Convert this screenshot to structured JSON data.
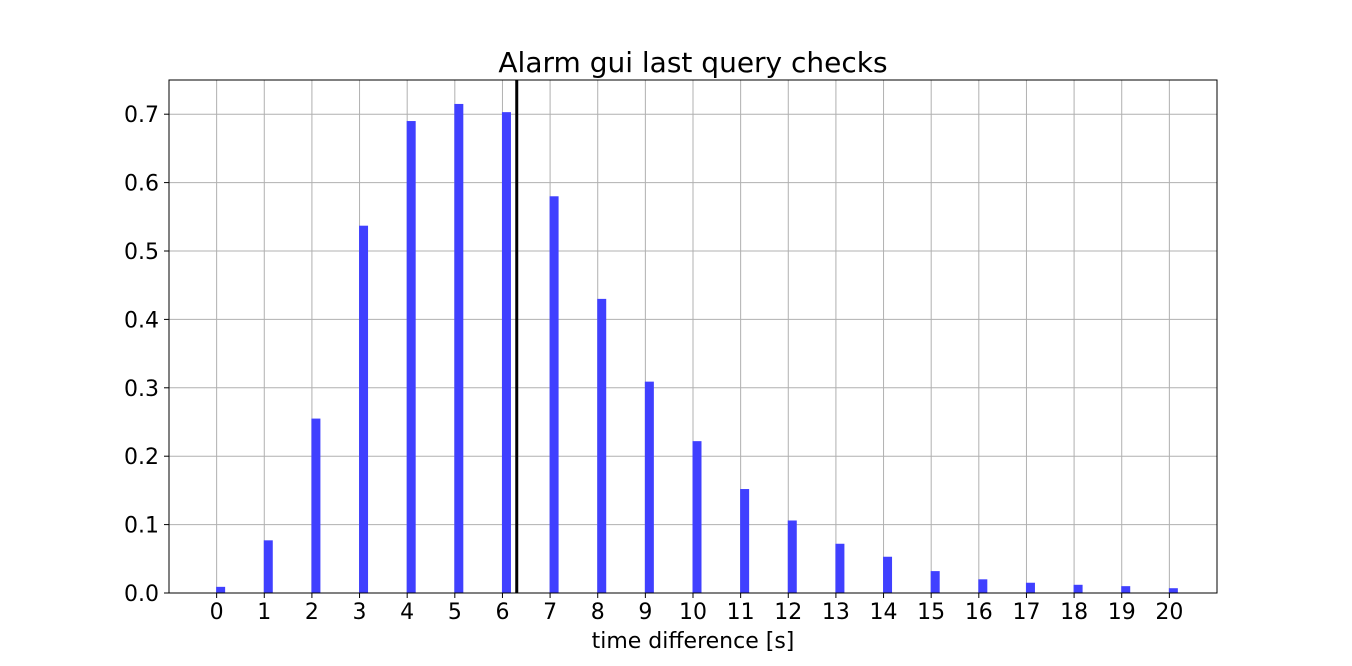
{
  "chart_data": {
    "type": "bar",
    "title": "Alarm gui last query checks",
    "xlabel": "time difference [s]",
    "ylabel": "",
    "categories": [
      "0",
      "1",
      "2",
      "3",
      "4",
      "5",
      "6",
      "7",
      "8",
      "9",
      "10",
      "11",
      "12",
      "13",
      "14",
      "15",
      "16",
      "17",
      "18",
      "19",
      "20"
    ],
    "x": [
      0,
      1,
      2,
      3,
      4,
      5,
      6,
      7,
      8,
      9,
      10,
      11,
      12,
      13,
      14,
      15,
      16,
      17,
      18,
      19,
      20
    ],
    "values": [
      0.009,
      0.077,
      0.255,
      0.537,
      0.69,
      0.715,
      0.703,
      0.58,
      0.43,
      0.309,
      0.222,
      0.152,
      0.106,
      0.072,
      0.053,
      0.032,
      0.02,
      0.015,
      0.012,
      0.01,
      0.007
    ],
    "xlim": [
      -1,
      21
    ],
    "ylim": [
      0,
      0.75
    ],
    "yticks": [
      0.0,
      0.1,
      0.2,
      0.3,
      0.4,
      0.5,
      0.6,
      0.7
    ],
    "ytick_labels": [
      "0.0",
      "0.1",
      "0.2",
      "0.3",
      "0.4",
      "0.5",
      "0.6",
      "0.7"
    ],
    "vline_x": 6.3,
    "grid": true,
    "bar_color": "#4040ff",
    "vline_color": "#000000",
    "grid_color": "#b0b0b0"
  }
}
